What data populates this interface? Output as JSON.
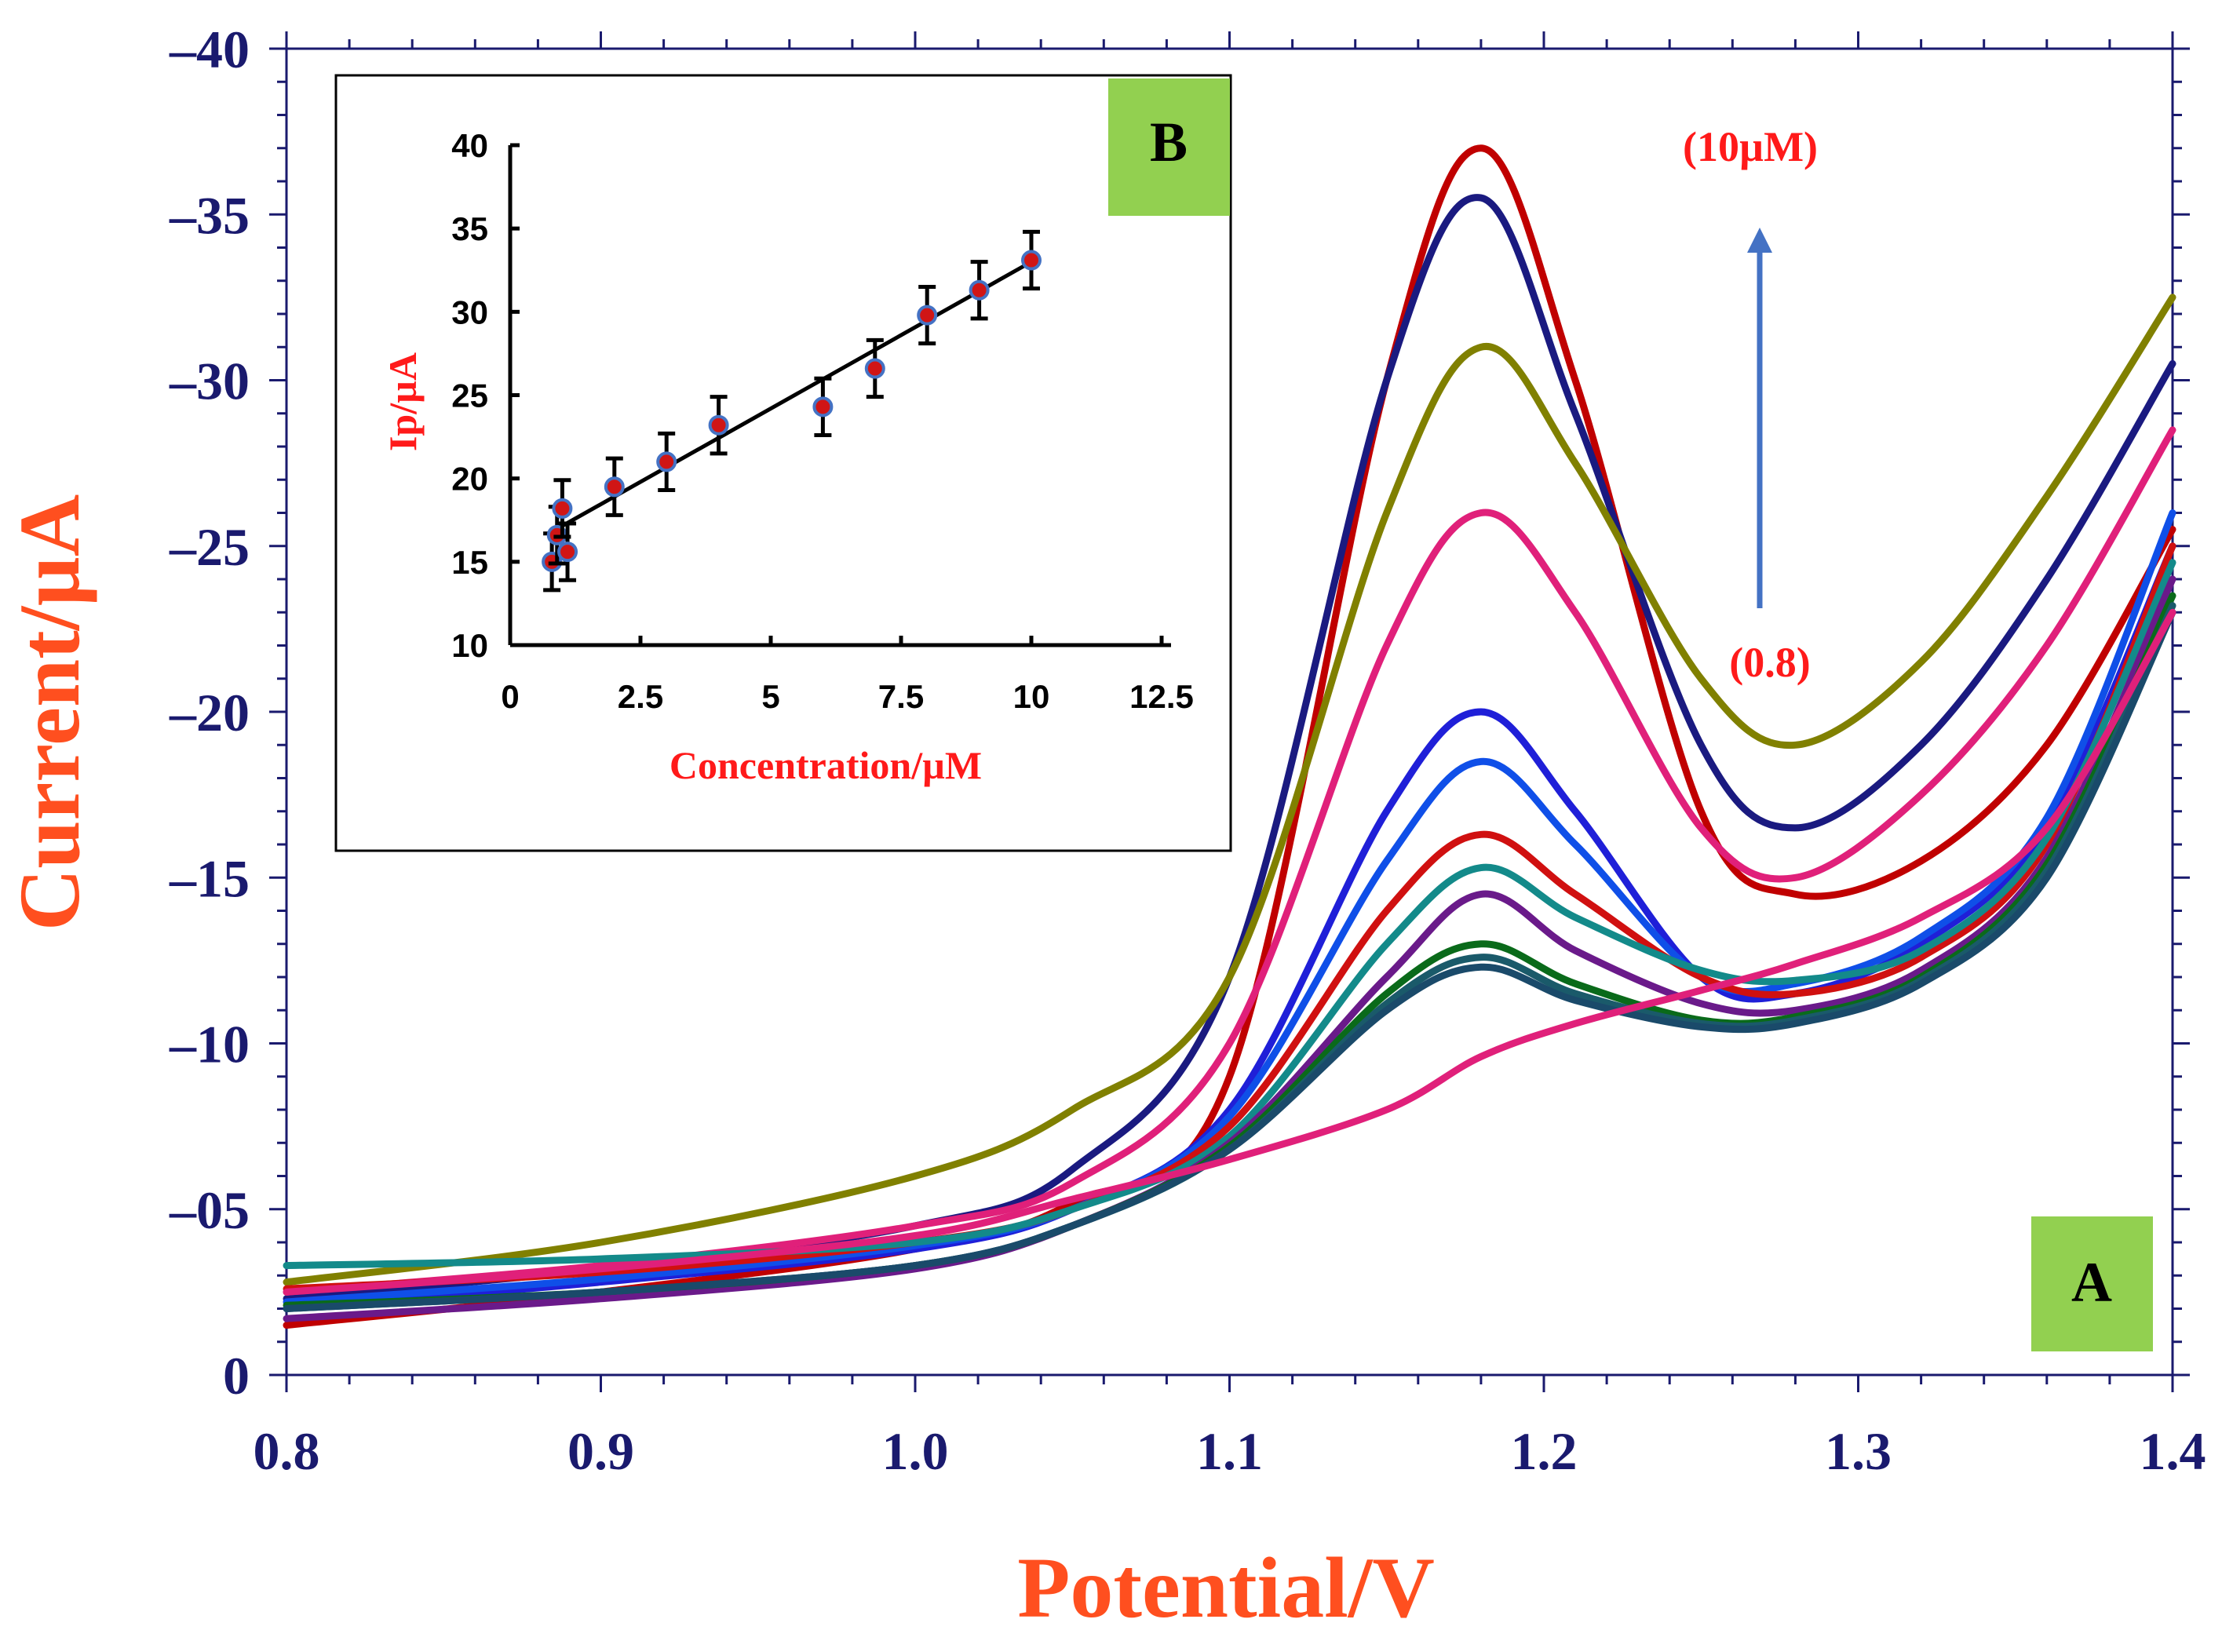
{
  "main_chart": {
    "panel_label": "A",
    "xlabel": "Potential/V",
    "ylabel": "Current/µA",
    "x_ticks": [
      "0.8",
      "0.9",
      "1.0",
      "1.1",
      "1.2",
      "1.3",
      "1.4"
    ],
    "y_ticks": [
      "0",
      "–05",
      "–10",
      "–15",
      "–20",
      "–25",
      "–30",
      "–35",
      "–40"
    ],
    "annotation_top": "(10µM)",
    "annotation_bottom": "(0.8)",
    "colors": {
      "axis": "#1a1a6e",
      "label": "#ff4f1f",
      "annotation": "#ff1a1a",
      "arrow": "#4472c4",
      "panel_box": "#92d050"
    }
  },
  "inset_chart": {
    "panel_label": "B",
    "xlabel": "Concentration/µM",
    "ylabel": "Ip/µA",
    "x_ticks": [
      "0",
      "2.5",
      "5",
      "7.5",
      "10",
      "12.5"
    ],
    "y_ticks": [
      "10",
      "15",
      "20",
      "25",
      "30",
      "35",
      "40"
    ]
  },
  "chart_data": [
    {
      "type": "line",
      "xlabel": "Potential/V",
      "ylabel": "Current/µA",
      "xlim": [
        0.8,
        1.4
      ],
      "ylim": [
        0,
        -40
      ],
      "grid": false,
      "series": [
        {
          "color": "#c00000",
          "x": [
            0.8,
            0.9,
            1.0,
            1.05,
            1.1,
            1.15,
            1.18,
            1.21,
            1.25,
            1.28,
            1.32,
            1.36,
            1.4
          ],
          "y": [
            -1.5,
            -2.5,
            -3.8,
            -5.2,
            -9,
            -30,
            -37,
            -30,
            -17,
            -14.5,
            -15.5,
            -19,
            -25.5
          ]
        },
        {
          "color": "#1a1a80",
          "x": [
            0.8,
            0.9,
            1.0,
            1.05,
            1.1,
            1.15,
            1.18,
            1.21,
            1.25,
            1.28,
            1.32,
            1.36,
            1.4
          ],
          "y": [
            -2.3,
            -3.2,
            -4.5,
            -6.2,
            -12,
            -30,
            -35.5,
            -29,
            -19,
            -16.5,
            -19,
            -24,
            -30.5
          ]
        },
        {
          "color": "#808000",
          "x": [
            0.8,
            0.9,
            1.0,
            1.05,
            1.1,
            1.15,
            1.18,
            1.21,
            1.25,
            1.28,
            1.32,
            1.36,
            1.4
          ],
          "y": [
            -2.8,
            -4,
            -6,
            -8,
            -12,
            -26,
            -31,
            -27.5,
            -21,
            -19,
            -21.5,
            -26.5,
            -32.5
          ]
        },
        {
          "color": "#e0207a",
          "x": [
            0.8,
            0.9,
            1.0,
            1.05,
            1.1,
            1.15,
            1.18,
            1.21,
            1.25,
            1.28,
            1.32,
            1.36,
            1.4
          ],
          "y": [
            -2.5,
            -3.3,
            -4.5,
            -5.8,
            -10,
            -22,
            -26,
            -23,
            -16.5,
            -15,
            -17.5,
            -22,
            -28.5
          ]
        },
        {
          "color": "#1f1fd8",
          "x": [
            0.8,
            0.9,
            1.0,
            1.05,
            1.1,
            1.15,
            1.18,
            1.21,
            1.25,
            1.28,
            1.32,
            1.36,
            1.4
          ],
          "y": [
            -2,
            -2.8,
            -3.8,
            -5,
            -8,
            -17,
            -20,
            -17,
            -12,
            -11.5,
            -13,
            -16.5,
            -25
          ]
        },
        {
          "color": "#0f4fe8",
          "x": [
            0.8,
            0.9,
            1.0,
            1.05,
            1.1,
            1.15,
            1.18,
            1.21,
            1.25,
            1.28,
            1.32,
            1.36,
            1.4
          ],
          "y": [
            -2.2,
            -2.9,
            -3.9,
            -5,
            -7.8,
            -15.5,
            -18.5,
            -16,
            -12,
            -11.8,
            -13.2,
            -16.8,
            -26
          ]
        },
        {
          "color": "#d01010",
          "x": [
            0.8,
            0.9,
            1.0,
            1.05,
            1.1,
            1.15,
            1.18,
            1.21,
            1.25,
            1.28,
            1.32,
            1.36,
            1.4
          ],
          "y": [
            -2.6,
            -3.1,
            -4,
            -5,
            -7.5,
            -14,
            -16.3,
            -14.5,
            -12,
            -11.5,
            -12.6,
            -16,
            -25
          ]
        },
        {
          "color": "#138a8a",
          "x": [
            0.8,
            0.9,
            1.0,
            1.05,
            1.1,
            1.15,
            1.18,
            1.21,
            1.25,
            1.28,
            1.32,
            1.36,
            1.4
          ],
          "y": [
            -3.3,
            -3.5,
            -4,
            -5,
            -7.2,
            -13,
            -15.3,
            -13.8,
            -12.2,
            -11.9,
            -12.8,
            -16.2,
            -24.5
          ]
        },
        {
          "color": "#6a1a8a",
          "x": [
            0.8,
            0.9,
            1.0,
            1.05,
            1.1,
            1.15,
            1.18,
            1.21,
            1.25,
            1.28,
            1.32,
            1.36,
            1.4
          ],
          "y": [
            -1.7,
            -2.3,
            -3.2,
            -4.5,
            -7,
            -12,
            -14.5,
            -12.8,
            -11.2,
            -11,
            -12.2,
            -15.6,
            -24
          ]
        },
        {
          "color": "#0a6a1a",
          "x": [
            0.8,
            0.9,
            1.0,
            1.05,
            1.1,
            1.15,
            1.18,
            1.21,
            1.25,
            1.28,
            1.32,
            1.36,
            1.4
          ],
          "y": [
            -2.1,
            -2.5,
            -3.3,
            -4.5,
            -6.9,
            -11.5,
            -13,
            -11.8,
            -10.7,
            -10.8,
            -12,
            -15.4,
            -23.5
          ]
        },
        {
          "color": "#1a5a6a",
          "x": [
            0.8,
            0.9,
            1.0,
            1.05,
            1.1,
            1.15,
            1.18,
            1.21,
            1.25,
            1.28,
            1.32,
            1.36,
            1.4
          ],
          "y": [
            -2,
            -2.5,
            -3.3,
            -4.5,
            -6.8,
            -11.2,
            -12.6,
            -11.5,
            -10.6,
            -10.7,
            -11.9,
            -15.2,
            -23.2
          ]
        },
        {
          "color": "#1a4a6a",
          "x": [
            0.8,
            0.9,
            1.0,
            1.05,
            1.1,
            1.15,
            1.18,
            1.21,
            1.25,
            1.28,
            1.32,
            1.36,
            1.4
          ],
          "y": [
            -2,
            -2.5,
            -3.3,
            -4.5,
            -6.8,
            -11,
            -12.3,
            -11.3,
            -10.5,
            -10.6,
            -11.8,
            -15,
            -23
          ]
        },
        {
          "color": "#e0207a",
          "x": [
            0.8,
            0.9,
            1.0,
            1.05,
            1.1,
            1.15,
            1.18,
            1.21,
            1.25,
            1.28,
            1.32,
            1.36,
            1.4
          ],
          "y": [
            -2.5,
            -3.2,
            -4.2,
            -5.3,
            -6.5,
            -8,
            -9.6,
            -10.6,
            -11.6,
            -12.4,
            -13.8,
            -16.5,
            -23
          ]
        }
      ]
    },
    {
      "type": "scatter",
      "xlabel": "Concentration/µM",
      "ylabel": "Ip/µA",
      "xlim": [
        0,
        12.5
      ],
      "ylim": [
        10,
        40
      ],
      "points": [
        {
          "x": 0.8,
          "y": 15.0,
          "err": 1.7
        },
        {
          "x": 0.9,
          "y": 16.6,
          "err": 1.7
        },
        {
          "x": 1.0,
          "y": 18.2,
          "err": 1.7
        },
        {
          "x": 1.1,
          "y": 15.6,
          "err": 1.7
        },
        {
          "x": 2.0,
          "y": 19.5,
          "err": 1.7
        },
        {
          "x": 3.0,
          "y": 21.0,
          "err": 1.7
        },
        {
          "x": 4.0,
          "y": 23.2,
          "err": 1.7
        },
        {
          "x": 6.0,
          "y": 24.3,
          "err": 1.7
        },
        {
          "x": 7.0,
          "y": 26.6,
          "err": 1.7
        },
        {
          "x": 8.0,
          "y": 29.8,
          "err": 1.7
        },
        {
          "x": 9.0,
          "y": 31.3,
          "err": 1.7
        },
        {
          "x": 10.0,
          "y": 33.1,
          "err": 1.7
        }
      ],
      "fit_line": {
        "x": [
          0.8,
          10.0
        ],
        "y": [
          16.8,
          33.0
        ]
      }
    }
  ]
}
